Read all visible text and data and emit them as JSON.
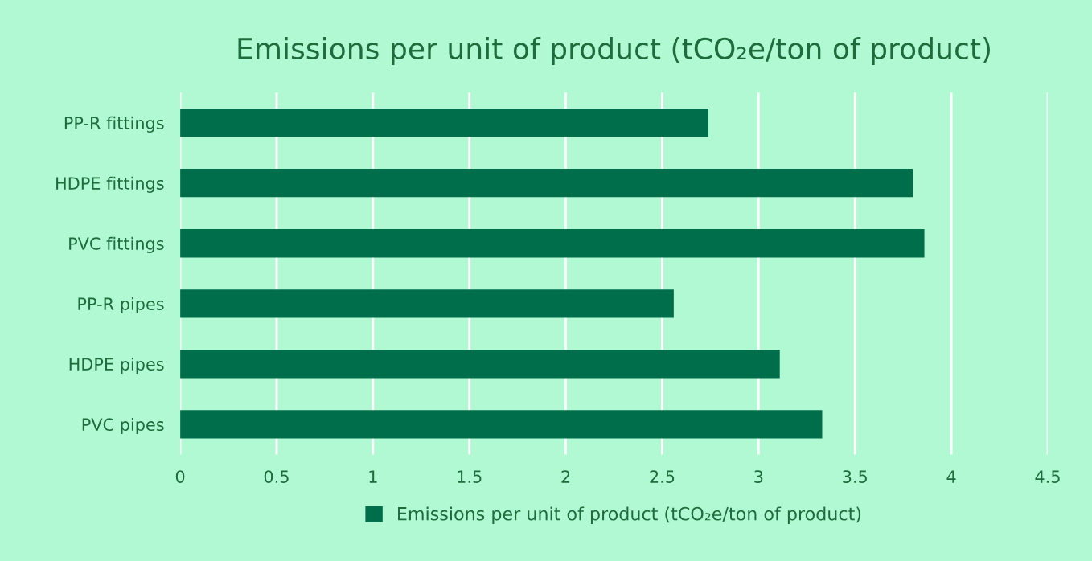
{
  "chart_data": {
    "type": "bar",
    "orientation": "horizontal",
    "title": "Emissions per unit of product (tCO₂e/ton of product)",
    "categories": [
      "PP-R fittings",
      "HDPE fittings",
      "PVC fittings",
      "PP-R pipes",
      "HDPE pipes",
      "PVC pipes"
    ],
    "series": [
      {
        "name": "Emissions per unit of product (tCO₂e/ton of product)",
        "color": "#006e4a",
        "values": [
          2.74,
          3.8,
          3.86,
          2.56,
          3.11,
          3.33
        ]
      }
    ],
    "xlim": [
      0,
      4.5
    ],
    "xticks": [
      0,
      0.5,
      1,
      1.5,
      2,
      2.5,
      3,
      3.5,
      4,
      4.5
    ],
    "grid": "x",
    "legend": "bottom"
  }
}
